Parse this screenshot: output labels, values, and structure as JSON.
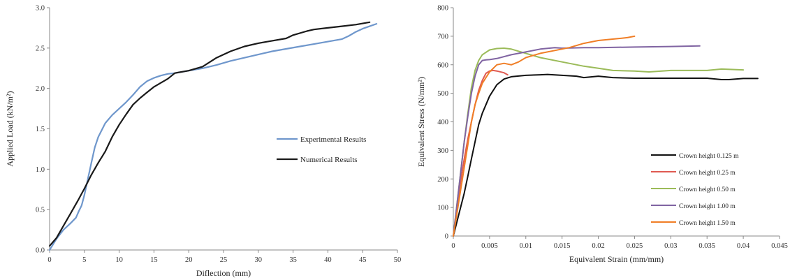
{
  "chart_data": [
    {
      "type": "line",
      "title": "",
      "xlabel": "Diflection (mm)",
      "ylabel": "Applied Load (kN/m²)",
      "xlim": [
        0,
        50
      ],
      "ylim": [
        0,
        3.0
      ],
      "xticks": [
        "0",
        "5",
        "10",
        "15",
        "20",
        "25",
        "30",
        "35",
        "40",
        "45",
        "50"
      ],
      "yticks": [
        "0.0",
        "0.5",
        "1.0",
        "1.5",
        "2.0",
        "2.5",
        "3.0"
      ],
      "grid": false,
      "legend_position": "center-right",
      "series": [
        {
          "name": "Experimental Results",
          "color": "#6f97cc",
          "x": [
            0,
            1,
            2,
            3,
            3.8,
            4.2,
            4.6,
            5,
            5.5,
            6,
            6.5,
            7,
            8,
            9,
            10,
            11,
            12,
            13,
            14,
            15,
            16,
            17,
            18,
            20,
            22,
            24,
            26,
            28,
            30,
            32,
            34,
            36,
            38,
            40,
            42,
            43,
            44,
            45,
            46,
            47
          ],
          "y": [
            0,
            0.14,
            0.25,
            0.33,
            0.4,
            0.48,
            0.55,
            0.68,
            0.88,
            1.08,
            1.27,
            1.4,
            1.57,
            1.67,
            1.75,
            1.83,
            1.92,
            2.02,
            2.09,
            2.13,
            2.16,
            2.18,
            2.19,
            2.22,
            2.25,
            2.29,
            2.34,
            2.38,
            2.42,
            2.46,
            2.49,
            2.52,
            2.55,
            2.58,
            2.61,
            2.65,
            2.7,
            2.74,
            2.77,
            2.8
          ]
        },
        {
          "name": "Numerical Results",
          "color": "#1a1a1a",
          "x": [
            0,
            1,
            2,
            3,
            4,
            5,
            6,
            7,
            8,
            9,
            10,
            11,
            12,
            13,
            14,
            15,
            16,
            17,
            18,
            20,
            22,
            24,
            25,
            26,
            28,
            30,
            32,
            34,
            35,
            37,
            38,
            40,
            42,
            44,
            46
          ],
          "y": [
            0.05,
            0.15,
            0.3,
            0.45,
            0.6,
            0.76,
            0.93,
            1.08,
            1.22,
            1.4,
            1.55,
            1.68,
            1.8,
            1.88,
            1.95,
            2.02,
            2.07,
            2.12,
            2.19,
            2.22,
            2.27,
            2.38,
            2.42,
            2.46,
            2.52,
            2.56,
            2.59,
            2.62,
            2.66,
            2.71,
            2.73,
            2.75,
            2.77,
            2.79,
            2.82
          ]
        }
      ]
    },
    {
      "type": "line",
      "title": "",
      "xlabel": "Equivalent Strain (mm/mm)",
      "ylabel": "Equivalent Stress (N/mm²)",
      "xlim": [
        0,
        0.045
      ],
      "ylim": [
        0,
        800
      ],
      "xticks": [
        "0",
        "0.005",
        "0.01",
        "0.015",
        "0.02",
        "0.025",
        "0.03",
        "0.035",
        "0.04",
        "0.045"
      ],
      "yticks": [
        "0",
        "100",
        "200",
        "300",
        "400",
        "500",
        "600",
        "700",
        "800"
      ],
      "grid": false,
      "legend_position": "bottom-right",
      "series": [
        {
          "name": "Crown height 0.125 m",
          "color": "#111111",
          "x": [
            0,
            0.001,
            0.0015,
            0.002,
            0.0025,
            0.003,
            0.0035,
            0.004,
            0.005,
            0.006,
            0.007,
            0.008,
            0.01,
            0.012,
            0.013,
            0.015,
            0.017,
            0.018,
            0.02,
            0.022,
            0.025,
            0.03,
            0.035,
            0.037,
            0.038,
            0.04,
            0.042
          ],
          "y": [
            0,
            100,
            150,
            210,
            270,
            330,
            390,
            430,
            490,
            530,
            550,
            558,
            563,
            565,
            566,
            563,
            560,
            555,
            560,
            555,
            553,
            553,
            553,
            548,
            548,
            552,
            552
          ]
        },
        {
          "name": "Crown height 0.25 m",
          "color": "#e05a52",
          "x": [
            0,
            0.0005,
            0.001,
            0.0015,
            0.002,
            0.0025,
            0.003,
            0.0035,
            0.004,
            0.0045,
            0.005,
            0.0055,
            0.006,
            0.007,
            0.0075
          ],
          "y": [
            0,
            100,
            190,
            270,
            340,
            400,
            460,
            510,
            545,
            570,
            578,
            580,
            578,
            572,
            565
          ]
        },
        {
          "name": "Crown height 0.50 m",
          "color": "#9bbb59",
          "x": [
            0,
            0.0005,
            0.001,
            0.0015,
            0.002,
            0.0025,
            0.003,
            0.0035,
            0.004,
            0.005,
            0.006,
            0.007,
            0.008,
            0.01,
            0.012,
            0.015,
            0.018,
            0.02,
            0.022,
            0.025,
            0.027,
            0.03,
            0.035,
            0.037,
            0.04
          ],
          "y": [
            0,
            110,
            220,
            330,
            430,
            520,
            580,
            615,
            635,
            652,
            657,
            658,
            655,
            640,
            625,
            610,
            595,
            588,
            580,
            578,
            575,
            580,
            580,
            585,
            582
          ]
        },
        {
          "name": "Crown height 1.00 m",
          "color": "#8064a2",
          "x": [
            0,
            0.0005,
            0.001,
            0.0015,
            0.002,
            0.0025,
            0.003,
            0.0035,
            0.004,
            0.0045,
            0.005,
            0.006,
            0.008,
            0.01,
            0.012,
            0.014,
            0.015,
            0.018,
            0.02,
            0.025,
            0.03,
            0.034
          ],
          "y": [
            0,
            110,
            220,
            330,
            420,
            500,
            560,
            600,
            615,
            617,
            618,
            622,
            635,
            645,
            655,
            660,
            658,
            660,
            660,
            662,
            664,
            666
          ]
        },
        {
          "name": "Crown height 1.50 m",
          "color": "#f07e26",
          "x": [
            0,
            0.0005,
            0.001,
            0.0015,
            0.002,
            0.0025,
            0.003,
            0.0035,
            0.004,
            0.005,
            0.006,
            0.007,
            0.008,
            0.009,
            0.01,
            0.012,
            0.014,
            0.016,
            0.018,
            0.02,
            0.022,
            0.024,
            0.025
          ],
          "y": [
            0,
            80,
            160,
            240,
            320,
            400,
            460,
            500,
            535,
            575,
            600,
            605,
            600,
            610,
            625,
            640,
            650,
            660,
            675,
            685,
            690,
            695,
            700
          ]
        }
      ]
    }
  ]
}
